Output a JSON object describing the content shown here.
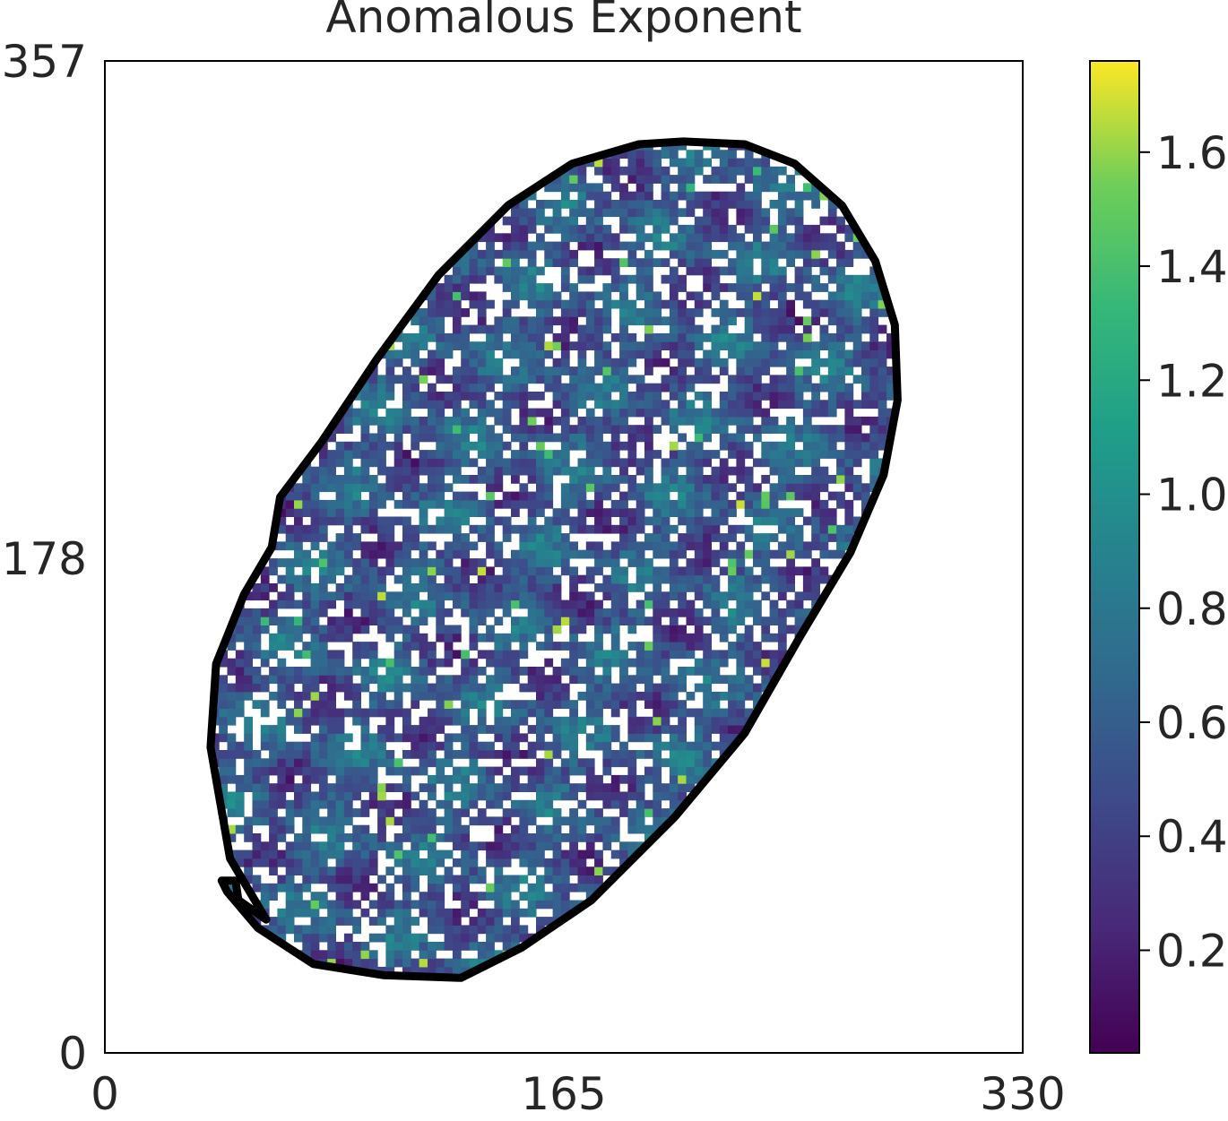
{
  "chart_data": {
    "type": "heatmap",
    "title": "Anomalous Exponent",
    "xlabel": "",
    "ylabel": "",
    "xlim": [
      0,
      330
    ],
    "ylim": [
      0,
      357
    ],
    "x_ticks": [
      "0",
      "165",
      "330"
    ],
    "y_ticks": [
      "357",
      "178",
      "0"
    ],
    "colormap": "viridis",
    "colorbar": {
      "range": [
        0.02,
        1.76
      ],
      "ticks": [
        "1.6",
        "1.4",
        "1.2",
        "1.0",
        "0.8",
        "0.6",
        "0.4",
        "0.2"
      ],
      "tick_values": [
        1.6,
        1.4,
        1.2,
        1.0,
        0.8,
        0.6,
        0.4,
        0.2
      ]
    },
    "mask_outline": {
      "color": "#000000",
      "points": [
        [
          192,
          327
        ],
        [
          208,
          328
        ],
        [
          230,
          327
        ],
        [
          248,
          320
        ],
        [
          265,
          305
        ],
        [
          277,
          285
        ],
        [
          284,
          262
        ],
        [
          285,
          235
        ],
        [
          280,
          208
        ],
        [
          268,
          180
        ],
        [
          250,
          150
        ],
        [
          230,
          115
        ],
        [
          205,
          85
        ],
        [
          175,
          55
        ],
        [
          150,
          38
        ],
        [
          128,
          27
        ],
        [
          100,
          28
        ],
        [
          75,
          32
        ],
        [
          55,
          45
        ],
        [
          44,
          58
        ],
        [
          42,
          62
        ],
        [
          47,
          62
        ],
        [
          48,
          55
        ],
        [
          58,
          48
        ],
        [
          45,
          70
        ],
        [
          38,
          110
        ],
        [
          40,
          140
        ],
        [
          50,
          165
        ],
        [
          60,
          182
        ],
        [
          63,
          200
        ],
        [
          63,
          200
        ],
        [
          78,
          220
        ],
        [
          98,
          250
        ],
        [
          120,
          280
        ],
        [
          145,
          305
        ],
        [
          168,
          320
        ]
      ]
    }
  }
}
